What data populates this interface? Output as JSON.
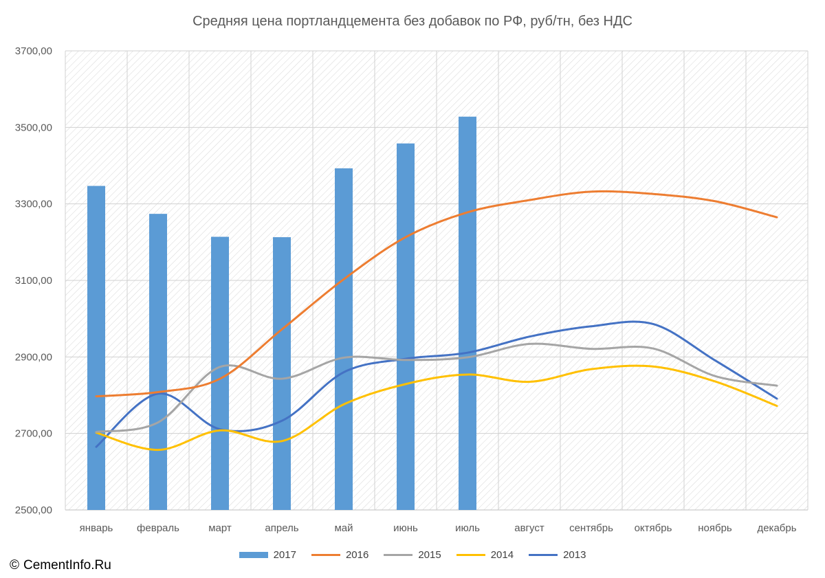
{
  "chart_data": {
    "type": "bar+line",
    "title": "Средняя цена портландцемента без добавок по РФ, руб/тн, без НДС",
    "categories": [
      "январь",
      "февраль",
      "март",
      "апрель",
      "май",
      "июнь",
      "июль",
      "август",
      "сентябрь",
      "октябрь",
      "ноябрь",
      "декабрь"
    ],
    "ylim": [
      2500,
      3700
    ],
    "yticks": [
      2500,
      2700,
      2900,
      3100,
      3300,
      3500,
      3700
    ],
    "ytick_labels": [
      "2500,00",
      "2700,00",
      "2900,00",
      "3100,00",
      "3300,00",
      "3500,00",
      "3700,00"
    ],
    "grid": true,
    "legend_position": "bottom",
    "series": [
      {
        "name": "2017",
        "kind": "bar",
        "color": "#5B9BD5",
        "values": [
          3347,
          3274,
          3214,
          3213,
          3393,
          3458,
          3528,
          null,
          null,
          null,
          null,
          null
        ]
      },
      {
        "name": "2016",
        "kind": "line",
        "color": "#ED7D31",
        "values": [
          2797,
          2808,
          2843,
          2972,
          3103,
          3213,
          3278,
          3310,
          3332,
          3326,
          3307,
          3265
        ]
      },
      {
        "name": "2015",
        "kind": "line",
        "color": "#A5A5A5",
        "values": [
          2704,
          2729,
          2874,
          2843,
          2898,
          2892,
          2899,
          2934,
          2921,
          2922,
          2850,
          2825
        ]
      },
      {
        "name": "2014",
        "kind": "line",
        "color": "#FFC000",
        "values": [
          2702,
          2657,
          2708,
          2680,
          2776,
          2829,
          2854,
          2835,
          2868,
          2875,
          2836,
          2772
        ]
      },
      {
        "name": "2013",
        "kind": "line",
        "color": "#4472C4",
        "values": [
          2665,
          2804,
          2711,
          2733,
          2860,
          2895,
          2911,
          2953,
          2980,
          2986,
          2891,
          2791
        ]
      }
    ]
  },
  "credit": {
    "symbol": "©",
    "text": "CementInfo.Ru"
  }
}
